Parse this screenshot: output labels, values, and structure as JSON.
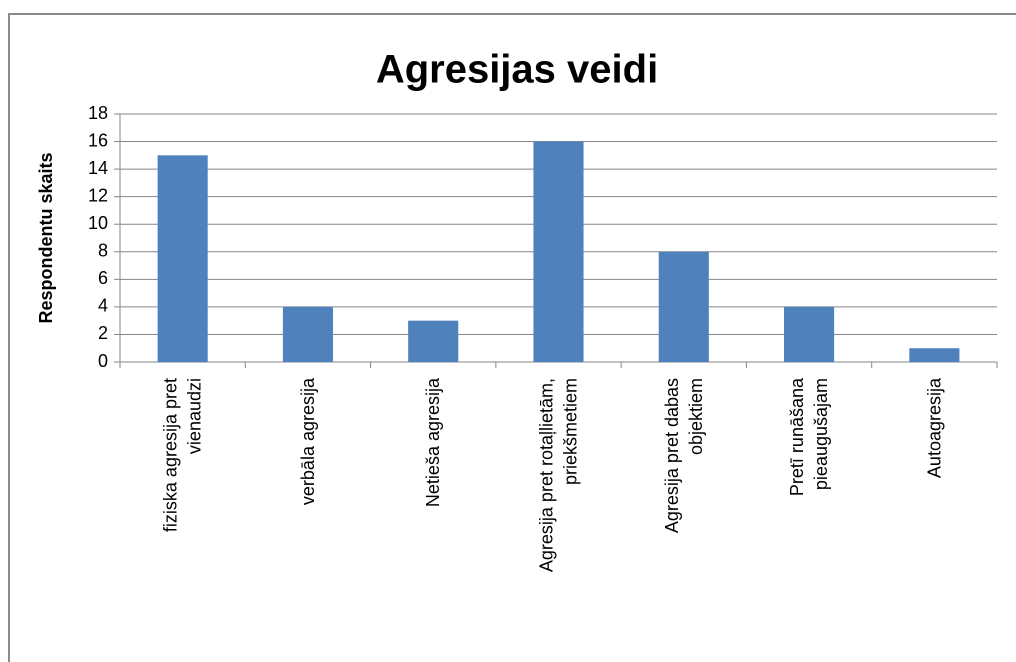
{
  "chart_data": {
    "type": "bar",
    "title": "Agresijas veidi",
    "y_label": "Respondentu skaits",
    "categories": [
      "fiziska agresija pret\nvienaudzi",
      "verbāla agresija",
      "Netieša agresija",
      "Agresija pret rotaļlietām,\npriekšmetiem",
      "Agresija pret dabas\nobjektiem",
      "Pretī runāšana\npieaugušajam",
      "Autoagresija"
    ],
    "values": [
      15,
      4,
      3,
      16,
      8,
      4,
      1
    ],
    "color": "#4f81bd",
    "ylim": [
      0,
      18
    ],
    "yticks": [
      0,
      2,
      4,
      6,
      8,
      10,
      12,
      14,
      16,
      18
    ],
    "grid": true
  }
}
